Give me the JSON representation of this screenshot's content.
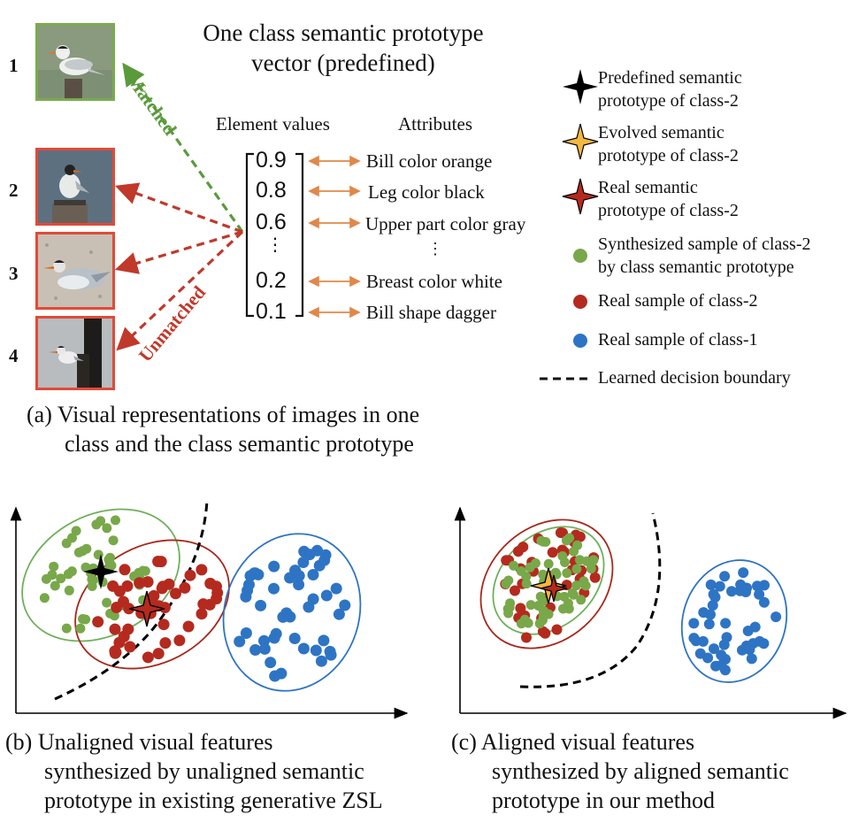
{
  "figure_a": {
    "title_line1": "One class semantic prototype",
    "title_line2": "vector (predefined)",
    "header_values": "Element values",
    "header_attributes": "Attributes",
    "image_indices": [
      "1",
      "2",
      "3",
      "4"
    ],
    "matched_label": "Matched",
    "unmatched_label": "Unmatched",
    "values": [
      "0.9",
      "0.8",
      "0.6",
      "⋮",
      "0.2",
      "0.1"
    ],
    "attributes": [
      "Bill color orange",
      "Leg color black",
      "Upper part color gray",
      "⋮",
      "Breast color white",
      "Bill shape dagger"
    ],
    "colors": {
      "matched": "#5b9a3c",
      "unmatched": "#c0392b",
      "arrow": "#e0884a"
    }
  },
  "legend": {
    "items": [
      {
        "line1": "Predefined semantic",
        "line2": "prototype of class-2"
      },
      {
        "line1": "Evolved semantic",
        "line2": "prototype of class-2"
      },
      {
        "line1": "Real semantic",
        "line2": "prototype of class-2"
      },
      {
        "line1": "Synthesized sample of class-2",
        "line2": "by class semantic prototype"
      },
      {
        "line1": "Real sample of class-2",
        "line2": ""
      },
      {
        "line1": "Real sample of class-1",
        "line2": ""
      },
      {
        "line1": "Learned decision boundary",
        "line2": ""
      }
    ],
    "colors": {
      "green": "#78a84a",
      "red": "#b52a1e",
      "blue": "#2e74c4",
      "orange": "#f4b740"
    }
  },
  "captions": {
    "a_line1": "(a) Visual representations of images in one",
    "a_line2": "class and the class semantic prototype",
    "b_line1": "(b) Unaligned visual features",
    "b_line2": "synthesized by unaligned semantic",
    "b_line3": "prototype in existing generative ZSL",
    "c_line1": "(c) Aligned visual features",
    "c_line2": "synthesized by aligned semantic",
    "c_line3": "prototype in our method"
  }
}
